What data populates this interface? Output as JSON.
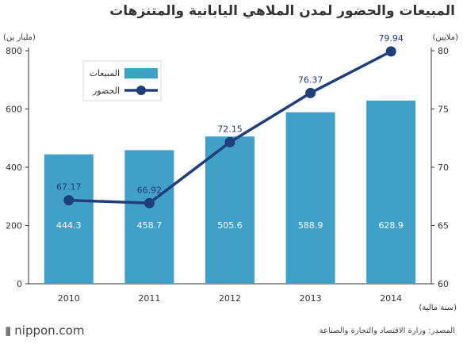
{
  "title": "المبيعات والحضور لمدن الملاهي اليابانية والمتنزهات",
  "left_unit": "(مليار ين)",
  "right_unit": "(ملايين)",
  "x_unit": "(سنة مالية)",
  "source": "المصدر: وزارة الاقتصاد والتجارة والصناعة",
  "brand": "nippon.com",
  "colors": {
    "bar": "#40a0c8",
    "line": "#1f3f7a",
    "axis": "#333333",
    "grid": "#e6e6e6"
  },
  "chart_data": {
    "type": "bar+line",
    "categories": [
      "2010",
      "2011",
      "2012",
      "2013",
      "2014"
    ],
    "series": [
      {
        "name": "المبيعات",
        "type": "bar",
        "axis": "left",
        "values": [
          444.3,
          458.7,
          505.6,
          588.9,
          628.9
        ]
      },
      {
        "name": "الحضور",
        "type": "line",
        "axis": "right",
        "values": [
          67.17,
          66.92,
          72.15,
          76.37,
          79.94
        ]
      }
    ],
    "left_axis": {
      "ticks": [
        0,
        200,
        400,
        600,
        800
      ],
      "range": [
        0,
        800
      ]
    },
    "right_axis": {
      "ticks": [
        60,
        65,
        70,
        75,
        80
      ],
      "range": [
        60,
        80
      ]
    },
    "legend_position": "top-left",
    "grid": false
  }
}
